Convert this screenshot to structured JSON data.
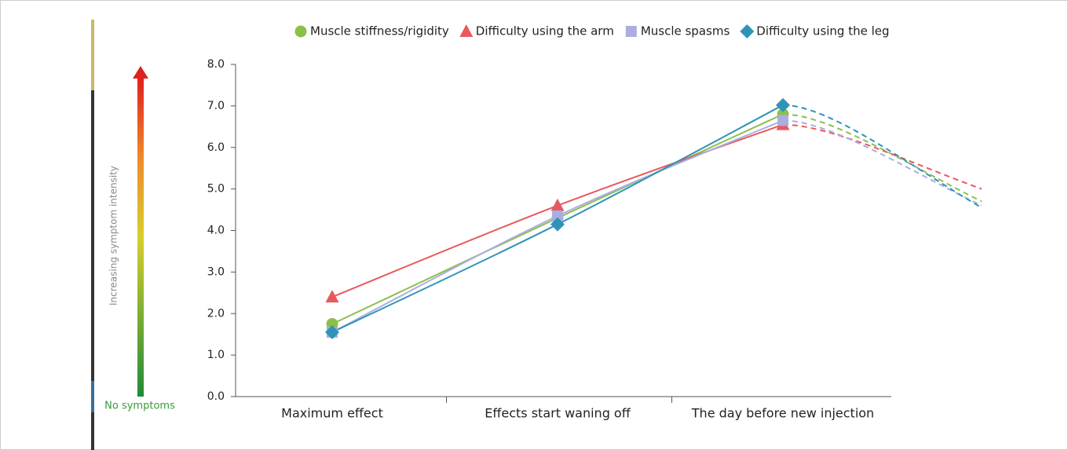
{
  "chart_data": {
    "type": "line",
    "legend_position": "top",
    "scale_label": "Increasing symptom intensity",
    "scale_bottom_label": "No symptoms",
    "categories": [
      "Maximum effect",
      "Effects start waning off",
      "The day before new injection"
    ],
    "series": [
      {
        "name": "Muscle stiffness/rigidity",
        "color": "#8dbf4a",
        "marker": "circle",
        "values": [
          1.75,
          4.3,
          6.8
        ],
        "extrapolation": 4.7
      },
      {
        "name": "Difficulty using the arm",
        "color": "#e8595e",
        "marker": "triangle",
        "values": [
          2.4,
          4.6,
          6.55
        ],
        "extrapolation": 5.0
      },
      {
        "name": "Muscle spasms",
        "color": "#a9aee0",
        "marker": "square",
        "values": [
          1.55,
          4.35,
          6.65
        ],
        "extrapolation": 4.6
      },
      {
        "name": "Difficulty using the leg",
        "color": "#2f93b8",
        "marker": "diamond",
        "values": [
          1.55,
          4.15,
          7.02
        ],
        "extrapolation": 4.55
      }
    ],
    "ylim": [
      0,
      8
    ],
    "yticks": [
      {
        "value": 0,
        "label": "0.0"
      },
      {
        "value": 1,
        "label": "1.0"
      },
      {
        "value": 2,
        "label": "2.0"
      },
      {
        "value": 3,
        "label": "3.0"
      },
      {
        "value": 4,
        "label": "4.0"
      },
      {
        "value": 5,
        "label": "5.0"
      },
      {
        "value": 6,
        "label": "6.0"
      },
      {
        "value": 7,
        "label": "7.0"
      },
      {
        "value": 8,
        "label": "8.0"
      }
    ],
    "grid": false
  }
}
